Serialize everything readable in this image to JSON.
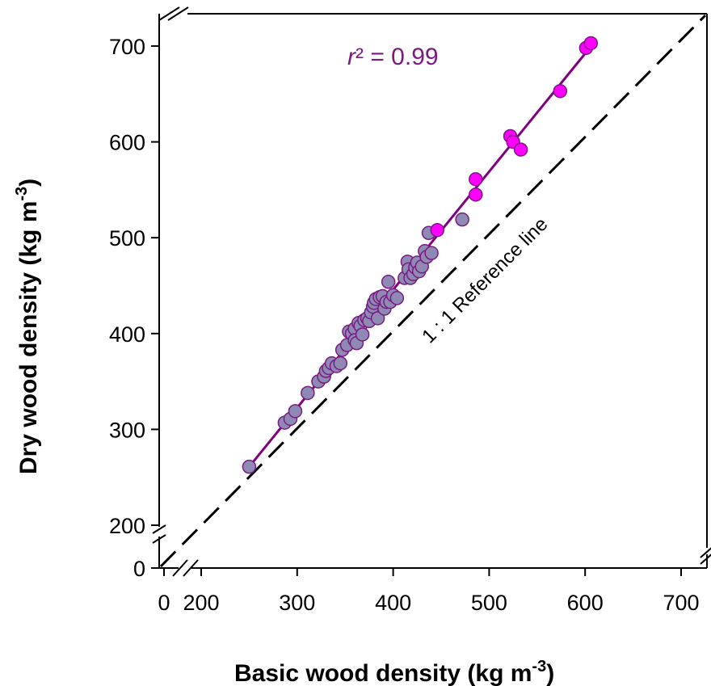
{
  "chart_data": {
    "type": "scatter",
    "xlabel": "Basic wood density (kg m",
    "xlabel_exp": "-3",
    "xlabel_end": ")",
    "ylabel": "Dry wood density (kg m",
    "ylabel_exp": "-3",
    "ylabel_end": ")",
    "x_ticks": [
      0,
      200,
      300,
      400,
      500,
      600,
      700
    ],
    "y_ticks": [
      0,
      200,
      300,
      400,
      500,
      600,
      700
    ],
    "x_tick_labels": [
      "0",
      "200",
      "300",
      "400",
      "500",
      "600",
      "700"
    ],
    "y_tick_labels": [
      "0",
      "200",
      "300",
      "400",
      "500",
      "600",
      "700"
    ],
    "axis_break": true,
    "xlim": [
      160,
      730
    ],
    "ylim": [
      160,
      740
    ],
    "grid": false,
    "reference_line_label": "1 : 1 Reference line",
    "r2_symbol": "r",
    "r2_text": "² = 0.99",
    "regression": {
      "x": [
        250,
        608
      ],
      "y": [
        261,
        702
      ],
      "color": "#800080"
    },
    "colors": {
      "gray_point": "#8e8ab4",
      "magenta_point": "#ff00ff",
      "point_edge": "#7a1a82",
      "fit_line": "#800080"
    },
    "series": [
      {
        "color": "#8e8ab4",
        "points": [
          [
            250,
            261
          ],
          [
            287,
            307
          ],
          [
            293,
            311
          ],
          [
            298,
            319
          ],
          [
            311,
            338
          ],
          [
            322,
            350
          ],
          [
            328,
            355
          ],
          [
            330,
            361
          ],
          [
            333,
            364
          ],
          [
            336,
            369
          ],
          [
            341,
            366
          ],
          [
            345,
            369
          ],
          [
            347,
            383
          ],
          [
            352,
            388
          ],
          [
            354,
            402
          ],
          [
            357,
            400
          ],
          [
            360,
            405
          ],
          [
            360,
            393
          ],
          [
            362,
            390
          ],
          [
            364,
            411
          ],
          [
            366,
            408
          ],
          [
            368,
            399
          ],
          [
            370,
            414
          ],
          [
            373,
            416
          ],
          [
            375,
            413
          ],
          [
            377,
            422
          ],
          [
            379,
            428
          ],
          [
            380,
            432
          ],
          [
            382,
            436
          ],
          [
            384,
            416
          ],
          [
            386,
            438
          ],
          [
            389,
            439
          ],
          [
            391,
            426
          ],
          [
            393,
            433
          ],
          [
            395,
            454
          ],
          [
            397,
            433
          ],
          [
            400,
            440
          ],
          [
            404,
            437
          ],
          [
            412,
            458
          ],
          [
            415,
            475
          ],
          [
            416,
            467
          ],
          [
            418,
            458
          ],
          [
            421,
            462
          ],
          [
            423,
            469
          ],
          [
            425,
            474
          ],
          [
            427,
            465
          ],
          [
            430,
            470
          ],
          [
            433,
            486
          ],
          [
            435,
            480
          ],
          [
            437,
            505
          ],
          [
            440,
            484
          ],
          [
            472,
            519
          ]
        ]
      },
      {
        "color": "#ff00ff",
        "points": [
          [
            446,
            508
          ],
          [
            486,
            561
          ],
          [
            486,
            545
          ],
          [
            522,
            606
          ],
          [
            525,
            600
          ],
          [
            533,
            592
          ],
          [
            574,
            653
          ],
          [
            601,
            698
          ],
          [
            606,
            703
          ]
        ]
      }
    ]
  }
}
